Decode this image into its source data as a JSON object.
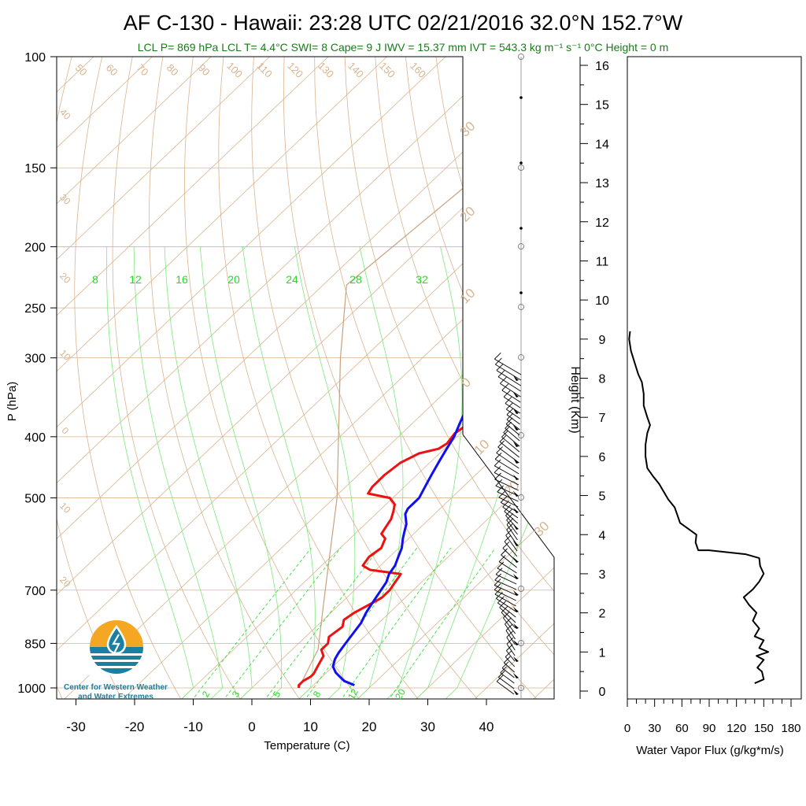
{
  "header": {
    "title": "AF C-130 - Hawaii: 23:28 UTC 02/21/2016  32.0°N 152.7°W",
    "subtitle": "LCL P= 869 hPa  LCL T= 4.4°C  SWI= 8  Cape= 9 J  IWV = 15.37 mm  IVT = 543.3 kg m⁻¹ s⁻¹  0°C Height = 0 m"
  },
  "logo": {
    "line1": "Center for Western Weather",
    "line2": "and Water Extremes"
  },
  "colors": {
    "temperature": "#ee1111",
    "dewpoint": "#1010ee",
    "isotherm": "#d9b48f",
    "mixing_ratio": "#22dd22",
    "moist_adiabat": "#7ee87e",
    "parcel": "#c8a27c",
    "flux": "#000000",
    "subtitle": "#1a7a1a",
    "logo_orange": "#f5a623",
    "logo_teal": "#1a7fa0"
  },
  "chart_data": [
    {
      "type": "line",
      "name": "skew-t",
      "xlabel": "Temperature (C)",
      "ylabel": "P (hPa)",
      "xlim": [
        -35,
        50
      ],
      "ylim": [
        1050,
        100
      ],
      "yscale": "log",
      "xticks": [
        -30,
        -20,
        -10,
        0,
        10,
        20,
        30,
        40
      ],
      "yticks": [
        100,
        150,
        200,
        250,
        300,
        400,
        500,
        700,
        850,
        1000
      ],
      "isotherm_labels": [
        {
          "t": 50,
          "label": "50"
        },
        {
          "t": 60,
          "label": "60"
        },
        {
          "t": 70,
          "label": "70"
        },
        {
          "t": 80,
          "label": "80"
        },
        {
          "t": 90,
          "label": "90"
        },
        {
          "t": 100,
          "label": "100"
        },
        {
          "t": 110,
          "label": "110"
        },
        {
          "t": 120,
          "label": "120"
        },
        {
          "t": 130,
          "label": "130"
        },
        {
          "t": 140,
          "label": "140"
        },
        {
          "t": 150,
          "label": "150"
        },
        {
          "t": 160,
          "label": "160"
        }
      ],
      "left_isotherm_labels": [
        "40",
        "30",
        "20",
        "10",
        "0",
        "10",
        "20"
      ],
      "right_isotherm_labels": [
        "30",
        "20",
        "10",
        "0",
        "10",
        "20",
        "30"
      ],
      "mixing_ratio_top_labels": [
        "8",
        "12",
        "16",
        "20",
        "24",
        "28",
        "32"
      ],
      "mixing_ratio_bottom_labels": [
        "2",
        "3",
        "5",
        "8",
        "12",
        "20"
      ],
      "temperature": [
        [
          1000,
          8.0
        ],
        [
          990,
          7.5
        ],
        [
          975,
          7.5
        ],
        [
          960,
          8.0
        ],
        [
          950,
          8.0
        ],
        [
          930,
          7.5
        ],
        [
          910,
          7.0
        ],
        [
          890,
          6.5
        ],
        [
          870,
          5.0
        ],
        [
          850,
          5.0
        ],
        [
          830,
          4.0
        ],
        [
          800,
          4.5
        ],
        [
          780,
          3.5
        ],
        [
          760,
          4.0
        ],
        [
          740,
          5.0
        ],
        [
          720,
          6.0
        ],
        [
          700,
          6.0
        ],
        [
          680,
          5.5
        ],
        [
          660,
          5.0
        ],
        [
          655,
          2.0
        ],
        [
          650,
          -1.0
        ],
        [
          640,
          -3.0
        ],
        [
          620,
          -3.5
        ],
        [
          600,
          -3.0
        ],
        [
          590,
          -3.5
        ],
        [
          580,
          -4.0
        ],
        [
          570,
          -5.5
        ],
        [
          555,
          -6.0
        ],
        [
          540,
          -6.5
        ],
        [
          525,
          -7.5
        ],
        [
          512,
          -8.5
        ],
        [
          500,
          -10.5
        ],
        [
          492,
          -15.0
        ],
        [
          480,
          -15.5
        ],
        [
          460,
          -15.5
        ],
        [
          440,
          -15.0
        ],
        [
          425,
          -13.5
        ],
        [
          418,
          -11.0
        ],
        [
          410,
          -10.5
        ],
        [
          395,
          -11.0
        ],
        [
          385,
          -10.5
        ],
        [
          375,
          -11.0
        ],
        [
          365,
          -10.5
        ],
        [
          355,
          -11.0
        ],
        [
          345,
          -11.0
        ],
        [
          335,
          -12.0
        ],
        [
          325,
          -14.0
        ],
        [
          315,
          -18.0
        ],
        [
          305,
          -20.0
        ],
        [
          300,
          -21.0
        ],
        [
          290,
          -21.5
        ],
        [
          280,
          -22.5
        ],
        [
          270,
          -24.0
        ]
      ],
      "dewpoint": [
        [
          990,
          17.0
        ],
        [
          975,
          14.5
        ],
        [
          960,
          13.0
        ],
        [
          945,
          11.5
        ],
        [
          925,
          10.0
        ],
        [
          900,
          9.0
        ],
        [
          880,
          8.5
        ],
        [
          850,
          8.0
        ],
        [
          820,
          7.5
        ],
        [
          790,
          7.0
        ],
        [
          760,
          6.0
        ],
        [
          740,
          5.5
        ],
        [
          720,
          5.0
        ],
        [
          700,
          4.5
        ],
        [
          680,
          4.0
        ],
        [
          660,
          3.0
        ],
        [
          640,
          2.5
        ],
        [
          620,
          1.5
        ],
        [
          600,
          0.5
        ],
        [
          580,
          -1.0
        ],
        [
          565,
          -2.0
        ],
        [
          550,
          -3.0
        ],
        [
          540,
          -4.0
        ],
        [
          530,
          -5.0
        ],
        [
          520,
          -5.5
        ],
        [
          510,
          -5.5
        ],
        [
          500,
          -5.5
        ],
        [
          480,
          -6.5
        ],
        [
          460,
          -7.5
        ],
        [
          440,
          -8.5
        ],
        [
          420,
          -9.5
        ],
        [
          400,
          -10.5
        ],
        [
          380,
          -12.0
        ],
        [
          360,
          -13.5
        ],
        [
          340,
          -15.0
        ],
        [
          325,
          -16.5
        ],
        [
          315,
          -17.5
        ],
        [
          305,
          -17.5
        ],
        [
          295,
          -17.5
        ],
        [
          285,
          -17.5
        ],
        [
          275,
          -17.5
        ]
      ],
      "parcel": [
        [
          1000,
          8.0
        ],
        [
          869,
          4.4
        ],
        [
          700,
          -5.0
        ],
        [
          500,
          -19.5
        ],
        [
          300,
          -44.0
        ],
        [
          230,
          -56.0
        ],
        [
          100,
          -50.0
        ]
      ]
    },
    {
      "type": "line",
      "name": "water-vapor-flux",
      "xlabel": "Water Vapor Flux (g/kg*m/s)",
      "ylabel": "Height (Km)",
      "xlim": [
        0,
        180
      ],
      "ylim": [
        -0.2,
        16.3
      ],
      "xticks": [
        0,
        30,
        60,
        90,
        120,
        150,
        180
      ],
      "yticks": [
        0,
        1,
        2,
        3,
        4,
        5,
        6,
        7,
        8,
        9,
        10,
        11,
        12,
        13,
        14,
        15,
        16
      ],
      "points": [
        [
          140,
          0.2
        ],
        [
          150,
          0.3
        ],
        [
          148,
          0.5
        ],
        [
          143,
          0.6
        ],
        [
          150,
          0.8
        ],
        [
          142,
          0.9
        ],
        [
          155,
          1.0
        ],
        [
          145,
          1.1
        ],
        [
          150,
          1.3
        ],
        [
          140,
          1.4
        ],
        [
          145,
          1.6
        ],
        [
          138,
          1.8
        ],
        [
          142,
          2.0
        ],
        [
          134,
          2.2
        ],
        [
          128,
          2.4
        ],
        [
          138,
          2.6
        ],
        [
          145,
          2.8
        ],
        [
          150,
          3.0
        ],
        [
          146,
          3.2
        ],
        [
          145,
          3.4
        ],
        [
          130,
          3.5
        ],
        [
          90,
          3.6
        ],
        [
          78,
          3.6
        ],
        [
          75,
          3.8
        ],
        [
          76,
          4.0
        ],
        [
          70,
          4.1
        ],
        [
          58,
          4.3
        ],
        [
          55,
          4.5
        ],
        [
          52,
          4.7
        ],
        [
          45,
          4.9
        ],
        [
          40,
          5.1
        ],
        [
          35,
          5.3
        ],
        [
          28,
          5.5
        ],
        [
          22,
          5.7
        ],
        [
          20,
          6.0
        ],
        [
          20,
          6.3
        ],
        [
          22,
          6.6
        ],
        [
          25,
          6.8
        ],
        [
          22,
          7.0
        ],
        [
          18,
          7.3
        ],
        [
          18,
          7.6
        ],
        [
          16,
          7.9
        ],
        [
          12,
          8.1
        ],
        [
          8,
          8.4
        ],
        [
          4,
          8.7
        ],
        [
          2,
          9.0
        ],
        [
          3,
          9.2
        ]
      ]
    }
  ]
}
